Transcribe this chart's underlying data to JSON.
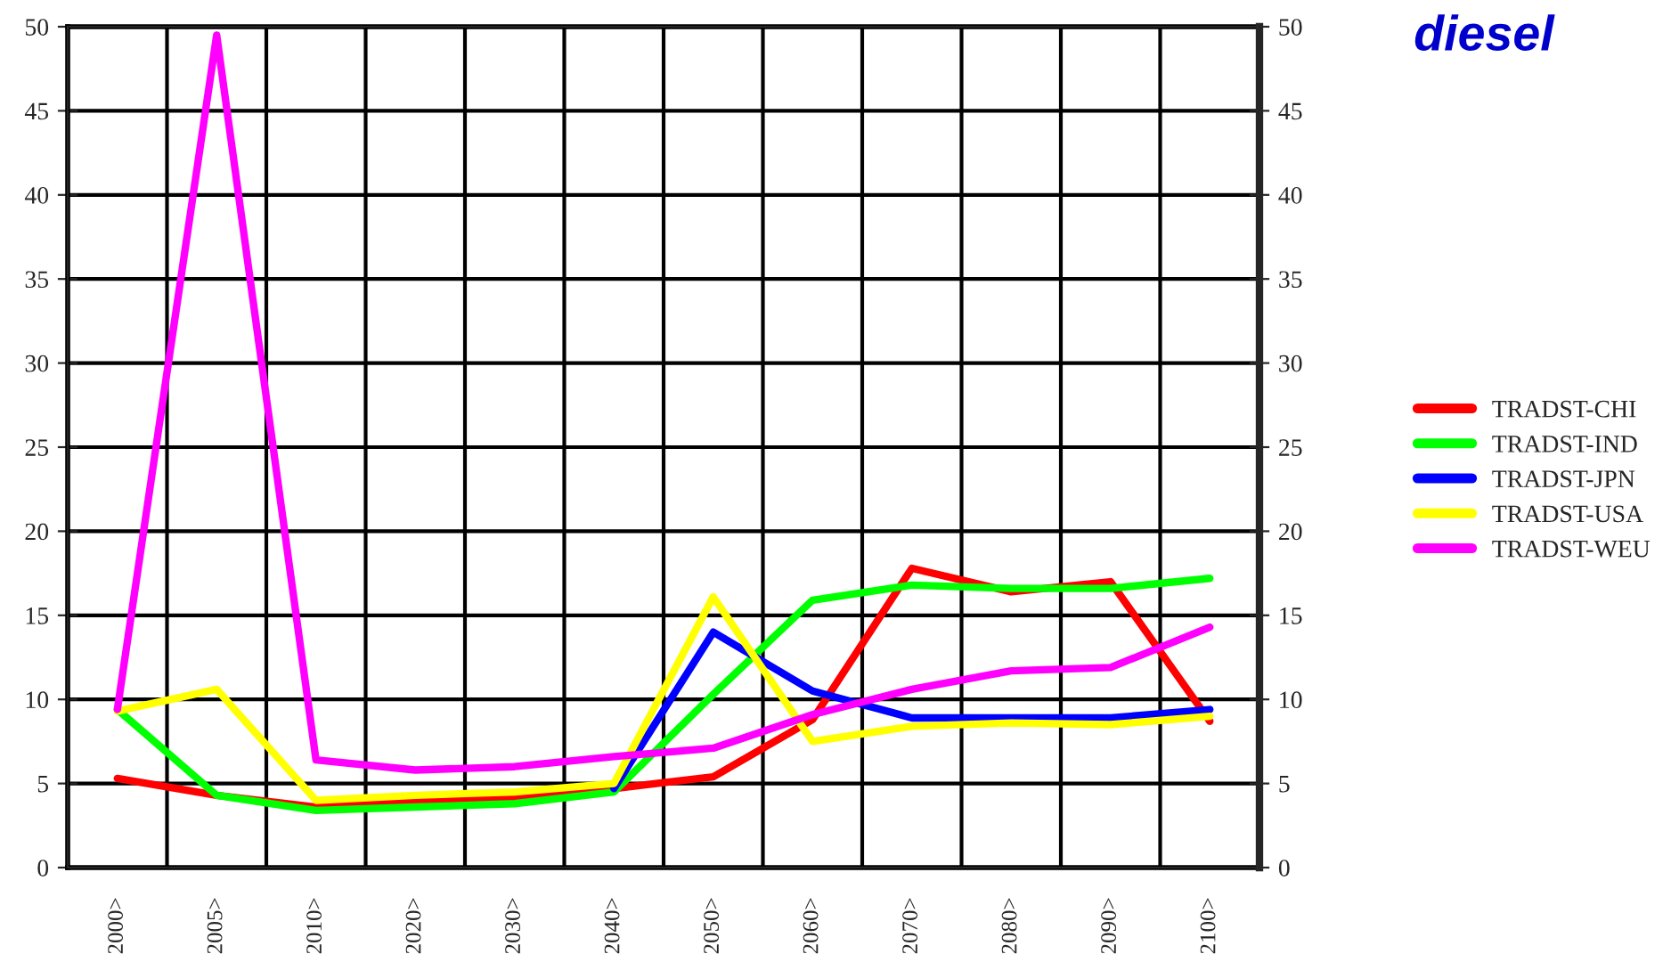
{
  "chart_data": {
    "type": "line",
    "title": "diesel",
    "categories": [
      "2000>",
      "2005>",
      "2010>",
      "2020>",
      "2030>",
      "2040>",
      "2050>",
      "2060>",
      "2070>",
      "2080>",
      "2090>",
      "2100>"
    ],
    "series": [
      {
        "name": "TRADST-CHI",
        "color": "#ff0000",
        "values": [
          5.3,
          4.3,
          3.6,
          3.9,
          4.1,
          4.7,
          5.4,
          8.8,
          17.8,
          16.4,
          17.0,
          8.7
        ]
      },
      {
        "name": "TRADST-IND",
        "color": "#00ff00",
        "values": [
          9.4,
          4.3,
          3.4,
          3.6,
          3.8,
          4.5,
          10.3,
          15.9,
          16.8,
          16.6,
          16.6,
          17.2
        ]
      },
      {
        "name": "TRADST-JPN",
        "color": "#0000ff",
        "values": [
          null,
          null,
          null,
          null,
          null,
          4.7,
          14.0,
          10.5,
          8.9,
          8.9,
          8.9,
          9.4
        ]
      },
      {
        "name": "TRADST-USA",
        "color": "#ffff00",
        "values": [
          9.3,
          10.6,
          4.0,
          4.3,
          4.5,
          5.0,
          16.1,
          7.5,
          8.4,
          8.6,
          8.5,
          9.0
        ]
      },
      {
        "name": "TRADST-WEU",
        "color": "#ff00ff",
        "values": [
          9.4,
          49.5,
          6.4,
          5.8,
          6.0,
          6.6,
          7.1,
          9.1,
          10.6,
          11.7,
          11.9,
          14.3
        ]
      }
    ],
    "ylim": [
      0,
      50
    ],
    "yticks": [
      0,
      5,
      10,
      15,
      20,
      25,
      30,
      35,
      40,
      45,
      50
    ],
    "y2lim": [
      0,
      50
    ],
    "y2ticks": [
      0,
      5,
      10,
      15,
      20,
      25,
      30,
      35,
      40,
      45,
      50
    ],
    "grid": true,
    "legend": "right",
    "marker": "none",
    "line_style": "solid"
  }
}
